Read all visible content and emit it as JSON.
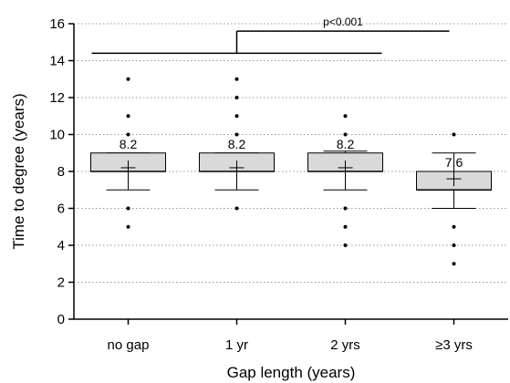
{
  "chart_data": {
    "type": "box",
    "title": "",
    "xlabel": "Gap length (years)",
    "ylabel": "Time to degree (years)",
    "ylim": [
      0,
      16
    ],
    "yticks": [
      0,
      2,
      4,
      6,
      8,
      10,
      12,
      14,
      16
    ],
    "grid": "horizontal-dotted",
    "box_fill": "#d9d9d9",
    "categories": [
      "no gap",
      "1 yr",
      "2 yrs",
      "≥3 yrs"
    ],
    "boxes": [
      {
        "category": "no gap",
        "whisker_low": 7,
        "q1": 8,
        "median": 8,
        "q3": 9,
        "whisker_high": 9,
        "mean": 8.2,
        "mean_label": "8.2",
        "outliers": [
          5,
          6,
          10,
          11,
          13
        ]
      },
      {
        "category": "1 yr",
        "whisker_low": 7,
        "q1": 8,
        "median": 8,
        "q3": 9,
        "whisker_high": 9,
        "mean": 8.2,
        "mean_label": "8.2",
        "outliers": [
          6,
          10,
          11,
          12,
          13
        ]
      },
      {
        "category": "2 yrs",
        "whisker_low": 7,
        "q1": 8,
        "median": 8,
        "q3": 9,
        "whisker_high": 9.1,
        "mean": 8.2,
        "mean_label": "8.2",
        "outliers": [
          4,
          5,
          6,
          10,
          11
        ]
      },
      {
        "category": "≥3 yrs",
        "whisker_low": 6,
        "q1": 7,
        "median": 7,
        "q3": 8,
        "whisker_high": 9,
        "mean": 7.6,
        "mean_label": "7.6",
        "outliers": [
          3,
          4,
          5,
          10
        ]
      }
    ],
    "significance": {
      "label": "p<0.001",
      "group_bar_y": 14.4,
      "top_bar_y": 15.6,
      "group_from": "no gap",
      "group_to": "2 yrs",
      "compare_to": "≥3 yrs"
    }
  }
}
